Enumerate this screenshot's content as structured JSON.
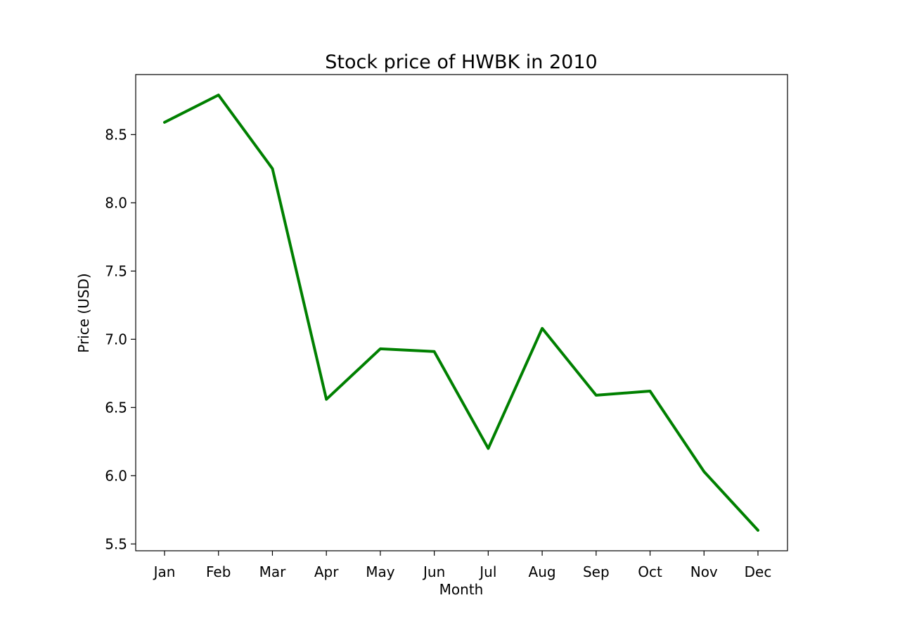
{
  "chart_data": {
    "type": "line",
    "title": "Stock price of HWBK in 2010",
    "xlabel": "Month",
    "ylabel": "Price (USD)",
    "categories": [
      "Jan",
      "Feb",
      "Mar",
      "Apr",
      "May",
      "Jun",
      "Jul",
      "Aug",
      "Sep",
      "Oct",
      "Nov",
      "Dec"
    ],
    "series": [
      {
        "color": "#008000",
        "values": [
          8.59,
          8.79,
          8.25,
          6.56,
          6.93,
          6.91,
          6.2,
          7.08,
          6.59,
          6.62,
          6.03,
          5.6
        ]
      }
    ],
    "ylim": [
      5.45,
      8.94
    ],
    "yticks": [
      5.5,
      6.0,
      6.5,
      7.0,
      7.5,
      8.0,
      8.5
    ],
    "ytick_labels": [
      "5.5",
      "6.0",
      "6.5",
      "7.0",
      "7.5",
      "8.0",
      "8.5"
    ],
    "grid": false
  }
}
